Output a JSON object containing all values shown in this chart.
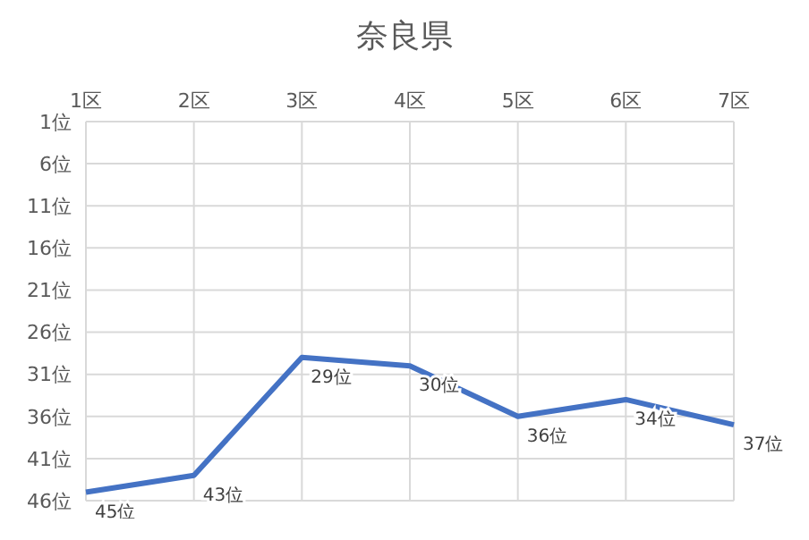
{
  "chart_data": {
    "type": "line",
    "title": "奈良県",
    "categories": [
      "1区",
      "2区",
      "3区",
      "4区",
      "5区",
      "6区",
      "7区"
    ],
    "series": [
      {
        "color": "#4472c4",
        "values": [
          45,
          43,
          29,
          30,
          36,
          34,
          37
        ],
        "value_labels": [
          "45位",
          "43位",
          "29位",
          "30位",
          "36位",
          "34位",
          "37位"
        ]
      }
    ],
    "ylim": [
      46,
      1
    ],
    "yticks": [
      {
        "value": 1,
        "label": "1位"
      },
      {
        "value": 6,
        "label": "6位"
      },
      {
        "value": 11,
        "label": "11位"
      },
      {
        "value": 16,
        "label": "16位"
      },
      {
        "value": 21,
        "label": "21位"
      },
      {
        "value": 26,
        "label": "26位"
      },
      {
        "value": 31,
        "label": "31位"
      },
      {
        "value": 36,
        "label": "36位"
      },
      {
        "value": 41,
        "label": "41位"
      },
      {
        "value": 46,
        "label": "46位"
      }
    ],
    "grid": true,
    "marker": "none",
    "line_style": "solid"
  }
}
